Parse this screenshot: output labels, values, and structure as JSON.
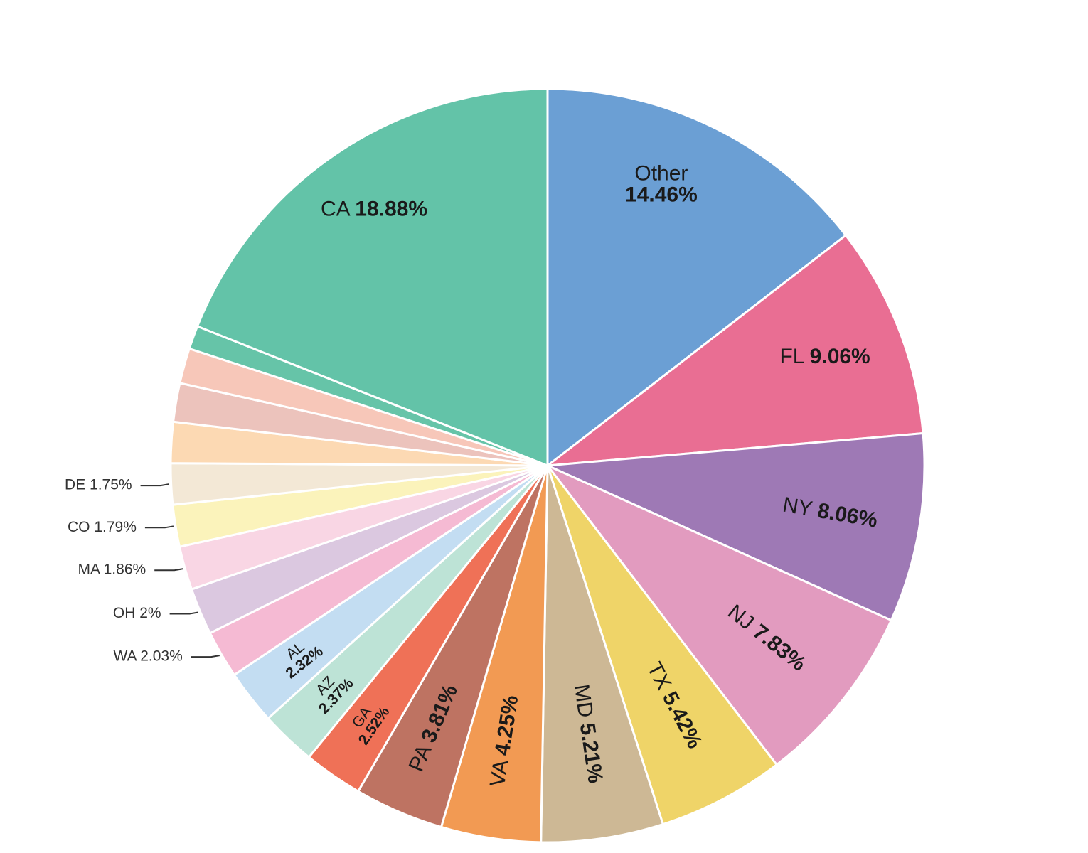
{
  "chart_data": {
    "type": "pie",
    "title": "",
    "legend": "none",
    "slices": [
      {
        "label": "Other",
        "value": 14.46,
        "pct_text": "14.46%",
        "color": "#6b9fd4"
      },
      {
        "label": "FL",
        "value": 9.06,
        "pct_text": "9.06%",
        "color": "#e96e93"
      },
      {
        "label": "NY",
        "value": 8.06,
        "pct_text": "8.06%",
        "color": "#9e79b5"
      },
      {
        "label": "NJ",
        "value": 7.83,
        "pct_text": "7.83%",
        "color": "#e29bbf"
      },
      {
        "label": "TX",
        "value": 5.42,
        "pct_text": "5.42%",
        "color": "#efd468"
      },
      {
        "label": "MD",
        "value": 5.21,
        "pct_text": "5.21%",
        "color": "#cdb895"
      },
      {
        "label": "VA",
        "value": 4.25,
        "pct_text": "4.25%",
        "color": "#f29a53"
      },
      {
        "label": "PA",
        "value": 3.81,
        "pct_text": "3.81%",
        "color": "#be7362"
      },
      {
        "label": "GA",
        "value": 2.52,
        "pct_text": "2.52%",
        "color": "#ef7157"
      },
      {
        "label": "AZ",
        "value": 2.37,
        "pct_text": "2.37%",
        "color": "#bde3d6"
      },
      {
        "label": "AL",
        "value": 2.32,
        "pct_text": "2.32%",
        "color": "#c3ddf2"
      },
      {
        "label": "WA",
        "value": 2.03,
        "pct_text": "2.03%",
        "color": "#f5bad3"
      },
      {
        "label": "OH",
        "value": 2.0,
        "pct_text": "2%",
        "color": "#dbc8e0"
      },
      {
        "label": "MA",
        "value": 1.86,
        "pct_text": "1.86%",
        "color": "#f9d6e4"
      },
      {
        "label": "CO",
        "value": 1.79,
        "pct_text": "1.79%",
        "color": "#fbf3bb"
      },
      {
        "label": "DE",
        "value": 1.75,
        "pct_text": "1.75%",
        "color": "#f3e8d6"
      },
      {
        "label": "",
        "value": 1.75,
        "pct_text": "",
        "color": "#fcd9b3"
      },
      {
        "label": "",
        "value": 1.65,
        "pct_text": "",
        "color": "#ecc3bc"
      },
      {
        "label": "",
        "value": 1.5,
        "pct_text": "",
        "color": "#f7c7b9"
      },
      {
        "label": "",
        "value": 1.0,
        "pct_text": "",
        "color": "#66c4a8"
      },
      {
        "label": "CA",
        "value": 18.88,
        "pct_text": "18.88%",
        "color": "#63c3a8"
      }
    ]
  }
}
